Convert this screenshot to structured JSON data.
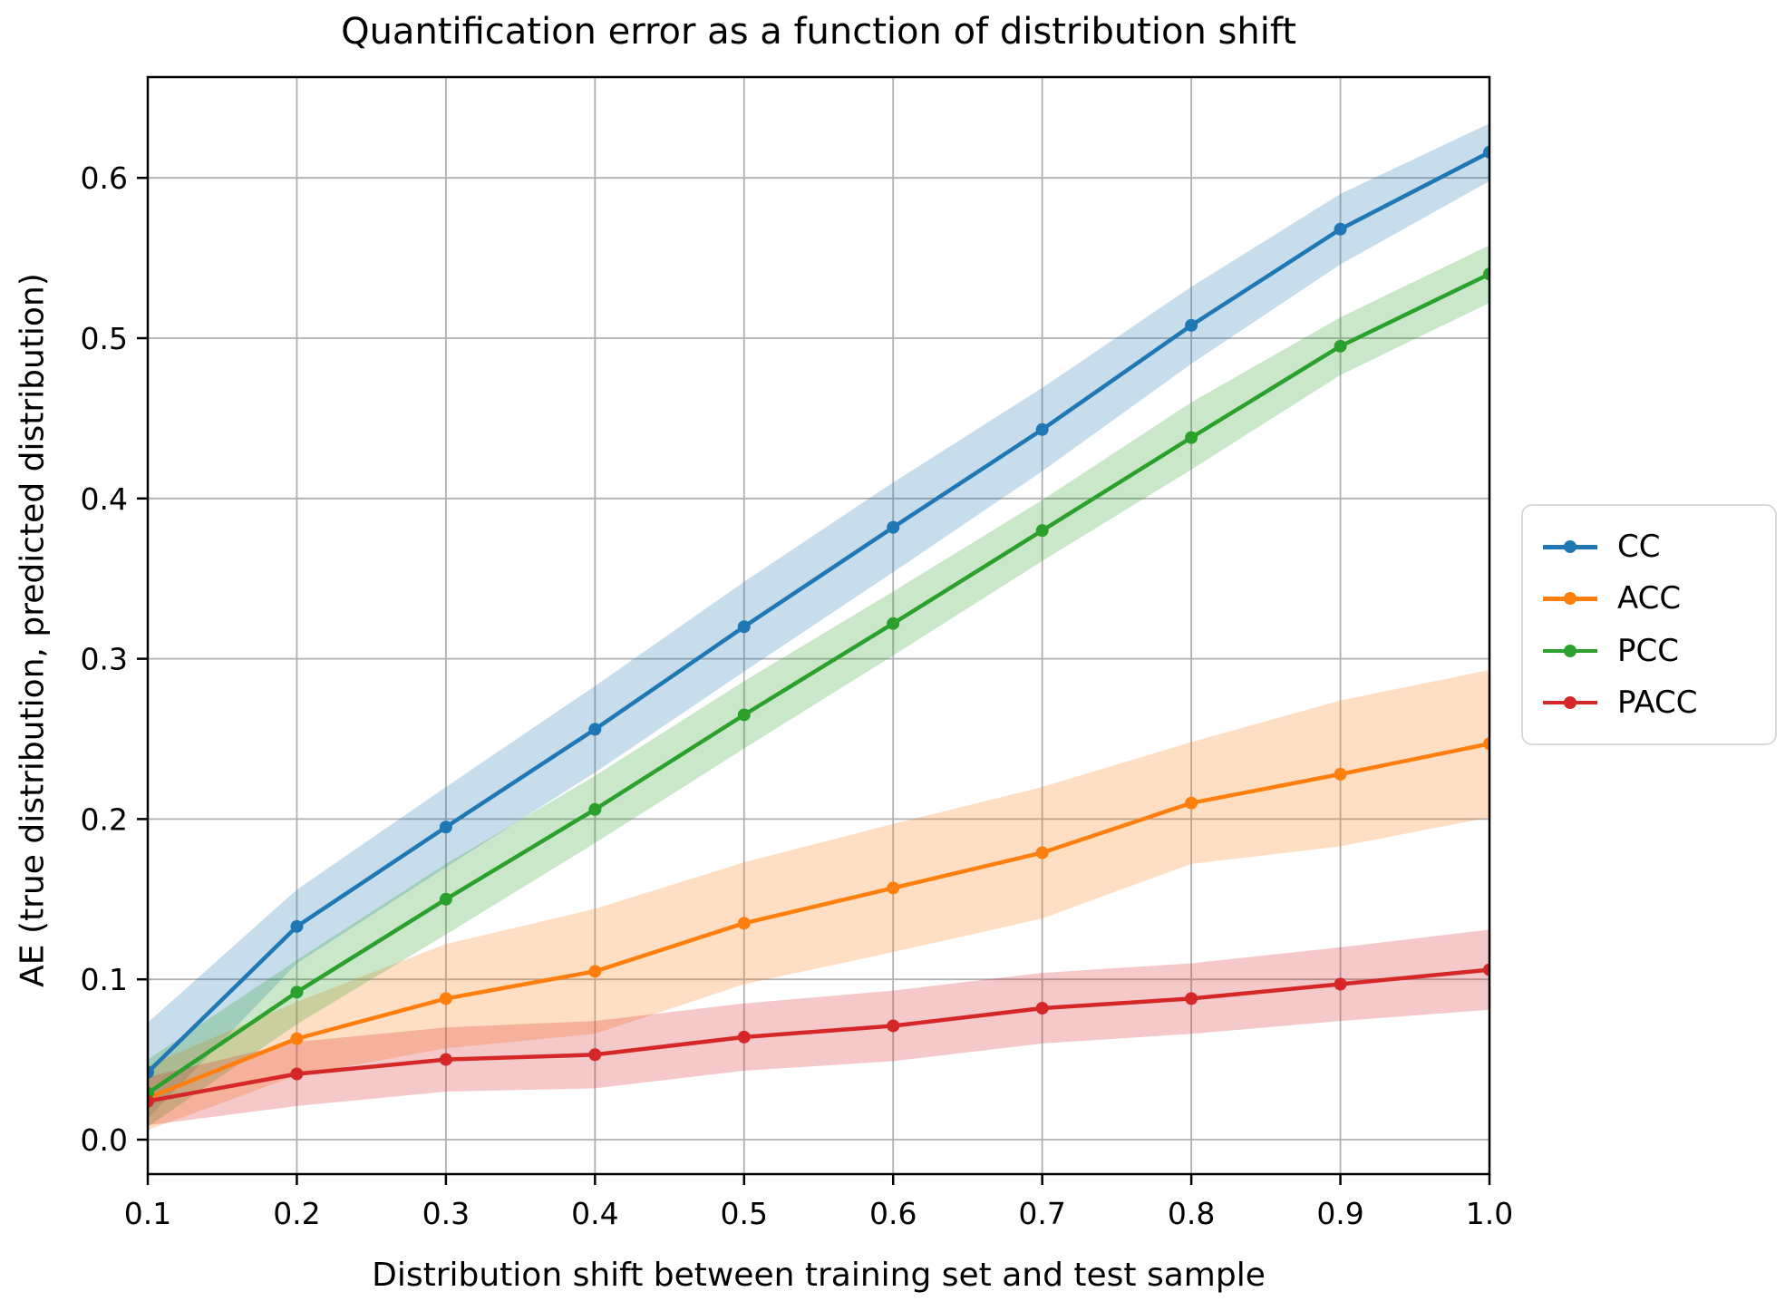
{
  "chart_data": {
    "type": "line",
    "title": "Quantification error as a function of distribution shift",
    "xlabel": "Distribution shift between training set and test sample",
    "ylabel": "AE (true distribution, predicted distribution)",
    "x": [
      0.1,
      0.2,
      0.3,
      0.4,
      0.5,
      0.6,
      0.7,
      0.8,
      0.9,
      1.0
    ],
    "x_tick_labels": [
      "0.1",
      "0.2",
      "0.3",
      "0.4",
      "0.5",
      "0.6",
      "0.7",
      "0.8",
      "0.9",
      "1.0"
    ],
    "y_ticks": [
      0.0,
      0.1,
      0.2,
      0.3,
      0.4,
      0.5,
      0.6
    ],
    "y_tick_labels": [
      "0.0",
      "0.1",
      "0.2",
      "0.3",
      "0.4",
      "0.5",
      "0.6"
    ],
    "xlim": [
      0.1,
      1.0
    ],
    "ylim": [
      -0.021,
      0.663
    ],
    "grid": true,
    "grid_color": "#b0b0b0",
    "legend_position": "outside-right",
    "series": [
      {
        "name": "CC",
        "color": "#1f77b4",
        "values": [
          0.042,
          0.133,
          0.195,
          0.256,
          0.32,
          0.382,
          0.443,
          0.508,
          0.568,
          0.616
        ],
        "band_low": [
          0.013,
          0.11,
          0.17,
          0.229,
          0.292,
          0.354,
          0.417,
          0.484,
          0.546,
          0.598
        ],
        "band_high": [
          0.073,
          0.156,
          0.22,
          0.283,
          0.348,
          0.41,
          0.469,
          0.532,
          0.59,
          0.634
        ]
      },
      {
        "name": "ACC",
        "color": "#ff7f0e",
        "values": [
          0.026,
          0.063,
          0.088,
          0.105,
          0.135,
          0.157,
          0.179,
          0.21,
          0.228,
          0.247
        ],
        "band_low": [
          0.006,
          0.04,
          0.057,
          0.066,
          0.097,
          0.117,
          0.138,
          0.172,
          0.183,
          0.201
        ],
        "band_high": [
          0.046,
          0.086,
          0.122,
          0.144,
          0.173,
          0.197,
          0.22,
          0.248,
          0.274,
          0.293
        ]
      },
      {
        "name": "PCC",
        "color": "#2ca02c",
        "values": [
          0.029,
          0.092,
          0.15,
          0.206,
          0.265,
          0.322,
          0.38,
          0.438,
          0.495,
          0.54
        ],
        "band_low": [
          0.008,
          0.072,
          0.128,
          0.185,
          0.244,
          0.302,
          0.361,
          0.418,
          0.477,
          0.522
        ],
        "band_high": [
          0.05,
          0.112,
          0.172,
          0.227,
          0.286,
          0.342,
          0.399,
          0.46,
          0.513,
          0.558
        ]
      },
      {
        "name": "PACC",
        "color": "#d62728",
        "values": [
          0.024,
          0.041,
          0.05,
          0.053,
          0.064,
          0.071,
          0.082,
          0.088,
          0.097,
          0.106
        ],
        "band_low": [
          0.009,
          0.021,
          0.03,
          0.032,
          0.043,
          0.049,
          0.06,
          0.066,
          0.074,
          0.081
        ],
        "band_high": [
          0.039,
          0.061,
          0.07,
          0.074,
          0.085,
          0.093,
          0.104,
          0.11,
          0.12,
          0.131
        ]
      }
    ]
  },
  "legend": {
    "items": [
      {
        "label": "CC",
        "color": "#1f77b4"
      },
      {
        "label": "ACC",
        "color": "#ff7f0e"
      },
      {
        "label": "PCC",
        "color": "#2ca02c"
      },
      {
        "label": "PACC",
        "color": "#d62728"
      }
    ]
  },
  "style": {
    "band_opacity": "0.25",
    "spine_color": "#000000"
  }
}
